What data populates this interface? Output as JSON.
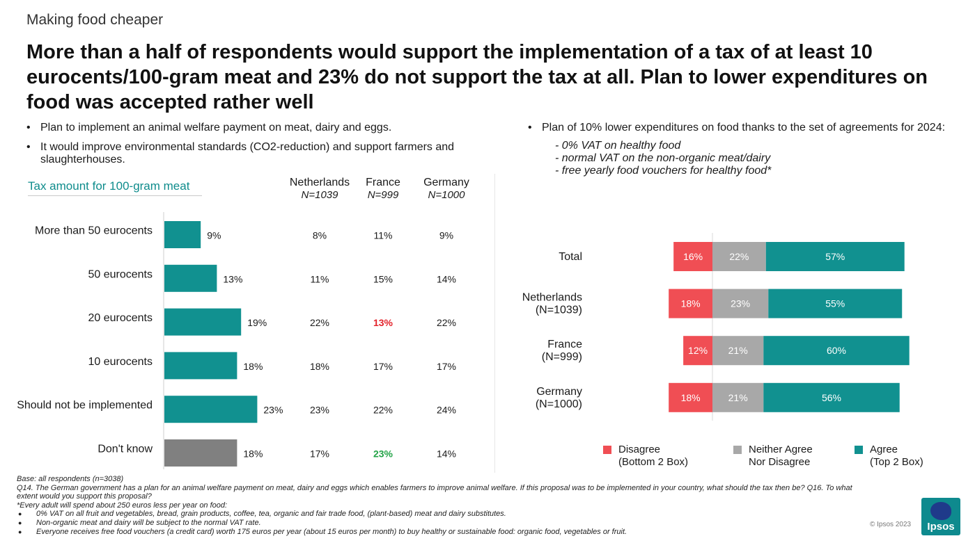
{
  "kicker": "Making food cheaper",
  "headline": "More than a half of respondents would support the implementation of a tax of at least 10 eurocents/100-gram meat and 23% do not support the tax at all. Plan to lower expenditures on food was accepted rather well",
  "left_bullets": [
    "Plan to implement an animal welfare payment on meat, dairy and eggs.",
    "It would improve environmental standards (CO2-reduction) and support farmers and slaughterhouses."
  ],
  "right_bullet": "Plan of 10% lower expenditures on food thanks to the set of agreements for 2024:",
  "right_sub_items": [
    "- 0% VAT on healthy food",
    "- normal VAT on the non-organic meat/dairy",
    "- free yearly food vouchers for healthy food*"
  ],
  "tax_heading": "Tax amount for 100-gram meat",
  "columns": [
    {
      "name": "Netherlands",
      "n": "N=1039"
    },
    {
      "name": "France",
      "n": "N=999"
    },
    {
      "name": "Germany",
      "n": "N=1000"
    }
  ],
  "chart_data": [
    {
      "type": "bar",
      "orientation": "horizontal",
      "title": "Tax amount for 100-gram meat",
      "categories": [
        "More than 50 eurocents",
        "50 eurocents",
        "20 eurocents",
        "10 eurocents",
        "Should not be implemented",
        "Don't know"
      ],
      "values": [
        9,
        13,
        19,
        18,
        23,
        18
      ],
      "value_labels": [
        "9%",
        "13%",
        "19%",
        "18%",
        "23%",
        "18%"
      ],
      "bar_colors": [
        "#119190",
        "#119190",
        "#119190",
        "#119190",
        "#119190",
        "#808080"
      ],
      "xlim": [
        0,
        30
      ],
      "table": {
        "columns": [
          "Netherlands",
          "France",
          "Germany"
        ],
        "rows": [
          [
            "8%",
            "11%",
            "9%"
          ],
          [
            "11%",
            "15%",
            "14%"
          ],
          [
            "22%",
            "13%",
            "22%"
          ],
          [
            "18%",
            "17%",
            "17%"
          ],
          [
            "23%",
            "22%",
            "24%"
          ],
          [
            "17%",
            "23%",
            "14%"
          ]
        ],
        "highlights": [
          {
            "row": 2,
            "col": 1,
            "color": "#e3232b"
          },
          {
            "row": 5,
            "col": 1,
            "color": "#23a347"
          }
        ]
      }
    },
    {
      "type": "bar",
      "orientation": "horizontal",
      "stacked": "diverging",
      "categories": [
        "Total",
        "Netherlands\n(N=1039)",
        "France\n(N=999)",
        "Germany\n(N=1000)"
      ],
      "series": [
        {
          "name": "Disagree (Bottom 2 Box)",
          "color": "#f04e54",
          "values": [
            16,
            18,
            12,
            18
          ]
        },
        {
          "name": "Neither Agree Nor Disagree",
          "color": "#a8a8a8",
          "values": [
            22,
            23,
            21,
            21
          ]
        },
        {
          "name": "Agree (Top 2 Box)",
          "color": "#119190",
          "values": [
            57,
            55,
            60,
            56
          ]
        }
      ],
      "legend_position": "bottom"
    }
  ],
  "legend": [
    {
      "line1": "Disagree",
      "line2": "(Bottom 2 Box)",
      "color": "#f04e54"
    },
    {
      "line1": "Neither Agree",
      "line2": "Nor Disagree",
      "color": "#a8a8a8"
    },
    {
      "line1": "Agree",
      "line2": "(Top 2 Box)",
      "color": "#119190"
    }
  ],
  "footnotes": {
    "base": "Base: all respondents (n=3038)",
    "question": "Q14. The German government has a plan for an animal welfare payment on meat, dairy and eggs which enables farmers to improve animal welfare. If this proposal was to be implemented in your country, what should the tax then be? Q16. To what extent would you support this proposal?",
    "note": "*Every adult will spend about 250 euros less per year on food:",
    "bullets": [
      "0% VAT on all fruit and vegetables, bread, grain products, coffee, tea, organic and fair trade food, (plant-based) meat and dairy substitutes.",
      "Non-organic meat and dairy will be subject to the normal VAT rate.",
      "Everyone receives free food vouchers (a credit card) worth 175 euros per year (about 15 euros per month) to buy healthy or sustainable food: organic food, vegetables or fruit."
    ]
  },
  "copyright": "© Ipsos 2023",
  "logo_text": "Ipsos"
}
